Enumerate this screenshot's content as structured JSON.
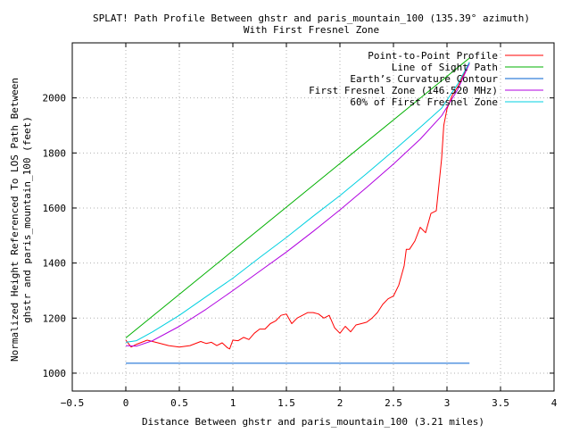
{
  "chart_data": {
    "type": "line",
    "title": "SPLAT! Path Profile Between ghstr and paris_mountain_100 (135.39° azimuth)",
    "subtitle": "With First Fresnel Zone",
    "xlabel": "Distance Between ghstr and paris_mountain_100 (3.21 miles)",
    "ylabel_line1": "Normalized Height Referenced To LOS Path Between",
    "ylabel_line2": "ghstr and paris_mountain_100 (feet)",
    "xlim": [
      -0.5,
      4
    ],
    "ylim": [
      935,
      2200
    ],
    "x_ticks": [
      -0.5,
      0,
      0.5,
      1,
      1.5,
      2,
      2.5,
      3,
      3.5,
      4
    ],
    "x_tick_labels": [
      "−0.5",
      "0",
      "0.5",
      "1",
      "1.5",
      "2",
      "2.5",
      "3",
      "3.5",
      "4"
    ],
    "y_ticks": [
      1000,
      1200,
      1400,
      1600,
      1800,
      2000
    ],
    "y_tick_labels": [
      "1000",
      "1200",
      "1400",
      "1600",
      "1800",
      "2000"
    ],
    "grid": true,
    "legend_position": "top-right",
    "series": [
      {
        "name": "Point-to-Point Profile",
        "color": "#ff0000",
        "x": [
          0,
          0.05,
          0.1,
          0.2,
          0.3,
          0.4,
          0.5,
          0.6,
          0.7,
          0.75,
          0.8,
          0.85,
          0.9,
          0.95,
          0.97,
          1.0,
          1.05,
          1.1,
          1.15,
          1.2,
          1.25,
          1.3,
          1.35,
          1.4,
          1.45,
          1.5,
          1.55,
          1.6,
          1.65,
          1.7,
          1.75,
          1.8,
          1.85,
          1.9,
          1.95,
          2.0,
          2.05,
          2.1,
          2.15,
          2.2,
          2.25,
          2.3,
          2.35,
          2.4,
          2.45,
          2.5,
          2.55,
          2.6,
          2.62,
          2.65,
          2.7,
          2.75,
          2.8,
          2.85,
          2.9,
          2.95,
          2.97,
          3.0,
          3.05,
          3.1,
          3.15,
          3.21
        ],
        "y": [
          1120,
          1095,
          1105,
          1120,
          1110,
          1100,
          1095,
          1100,
          1115,
          1108,
          1112,
          1100,
          1110,
          1092,
          1088,
          1120,
          1118,
          1130,
          1122,
          1145,
          1160,
          1160,
          1180,
          1190,
          1210,
          1215,
          1180,
          1200,
          1210,
          1220,
          1220,
          1215,
          1200,
          1210,
          1165,
          1145,
          1170,
          1150,
          1175,
          1180,
          1185,
          1200,
          1220,
          1250,
          1270,
          1280,
          1320,
          1390,
          1450,
          1450,
          1480,
          1530,
          1510,
          1580,
          1590,
          1780,
          1900,
          1960,
          2010,
          2040,
          2080,
          2130
        ]
      },
      {
        "name": "Line of Sight Path",
        "color": "#00b000",
        "x": [
          0,
          3.21
        ],
        "y": [
          1128,
          2145
        ]
      },
      {
        "name": "Earth’s Curvature Contour",
        "color": "#0060d0",
        "x": [
          0,
          3.21
        ],
        "y": [
          1036,
          1036
        ]
      },
      {
        "name": "First Fresnel Zone (146.520 MHz)",
        "color": "#b000e0",
        "x": [
          0,
          0.1,
          0.25,
          0.5,
          0.75,
          1.0,
          1.25,
          1.5,
          1.75,
          2.0,
          2.25,
          2.5,
          2.75,
          2.95,
          3.1,
          3.21
        ],
        "y": [
          1100,
          1098,
          1118,
          1170,
          1232,
          1300,
          1370,
          1440,
          1515,
          1593,
          1675,
          1760,
          1850,
          1935,
          2030,
          2125
        ]
      },
      {
        "name": "60% of First Fresnel Zone",
        "color": "#00d0e0",
        "x": [
          0,
          0.1,
          0.25,
          0.5,
          0.75,
          1.0,
          1.25,
          1.5,
          1.75,
          2.0,
          2.25,
          2.5,
          2.75,
          2.95,
          3.1,
          3.21
        ],
        "y": [
          1112,
          1118,
          1150,
          1210,
          1278,
          1345,
          1420,
          1493,
          1570,
          1645,
          1725,
          1808,
          1893,
          1963,
          2050,
          2130
        ]
      }
    ]
  }
}
